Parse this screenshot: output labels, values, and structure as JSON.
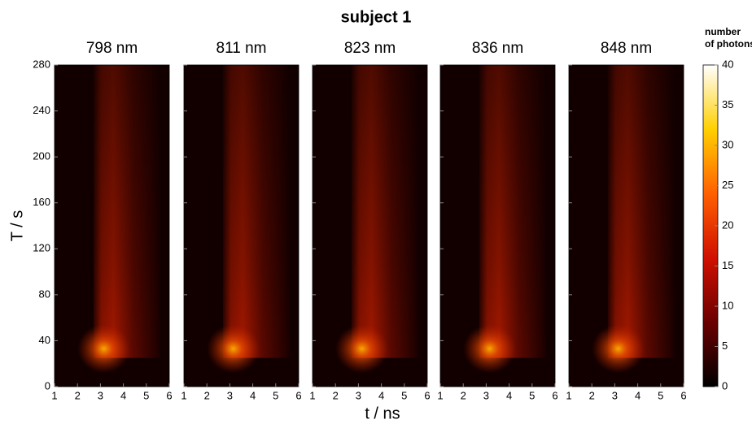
{
  "title": "subject 1",
  "x_label": "t / ns",
  "y_label": "T / s",
  "colorbar": {
    "label": [
      "number",
      "of photons"
    ],
    "lim": [
      0,
      40
    ],
    "ticks": [
      0,
      5,
      10,
      15,
      20,
      25,
      30,
      35,
      40
    ]
  },
  "chart_data": [
    {
      "type": "heatmap",
      "title": "798 nm",
      "xlim": [
        1,
        6
      ],
      "xticks": [
        1,
        2,
        3,
        4,
        5,
        6
      ],
      "ylim": [
        0,
        280
      ],
      "yticks": [
        0,
        40,
        80,
        120,
        160,
        200,
        240,
        280
      ]
    },
    {
      "type": "heatmap",
      "title": "811 nm",
      "xlim": [
        1,
        6
      ],
      "xticks": [
        1,
        2,
        3,
        4,
        5,
        6
      ],
      "ylim": [
        0,
        280
      ],
      "yticks": [
        0,
        40,
        80,
        120,
        160,
        200,
        240,
        280
      ]
    },
    {
      "type": "heatmap",
      "title": "823 nm",
      "xlim": [
        1,
        6
      ],
      "xticks": [
        1,
        2,
        3,
        4,
        5,
        6
      ],
      "ylim": [
        0,
        280
      ],
      "yticks": [
        0,
        40,
        80,
        120,
        160,
        200,
        240,
        280
      ]
    },
    {
      "type": "heatmap",
      "title": "836 nm",
      "xlim": [
        1,
        6
      ],
      "xticks": [
        1,
        2,
        3,
        4,
        5,
        6
      ],
      "ylim": [
        0,
        280
      ],
      "yticks": [
        0,
        40,
        80,
        120,
        160,
        200,
        240,
        280
      ]
    },
    {
      "type": "heatmap",
      "title": "848 nm",
      "xlim": [
        1,
        6
      ],
      "xticks": [
        1,
        2,
        3,
        4,
        5,
        6
      ],
      "ylim": [
        0,
        280
      ],
      "yticks": [
        0,
        40,
        80,
        120,
        160,
        200,
        240,
        280
      ]
    }
  ]
}
